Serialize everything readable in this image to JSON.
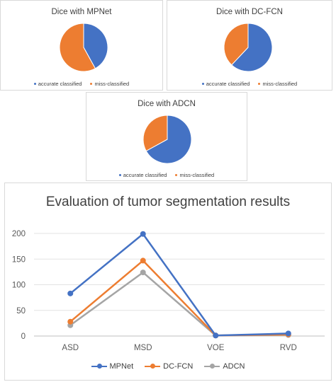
{
  "colors": {
    "blue": "#4472C4",
    "orange": "#ED7D31",
    "gray": "#A5A5A5"
  },
  "legend_labels": {
    "accurate": "accurate classified",
    "miss": "miss-classified"
  },
  "chart_data": [
    {
      "type": "pie",
      "title": "Dice with MPNet",
      "labels": [
        "accurate classified",
        "miss-classified"
      ],
      "values": [
        42,
        58
      ]
    },
    {
      "type": "pie",
      "title": "Dice with DC-FCN",
      "labels": [
        "accurate classified",
        "miss-classified"
      ],
      "values": [
        62,
        38
      ]
    },
    {
      "type": "pie",
      "title": "Dice with ADCN",
      "labels": [
        "accurate classified",
        "miss-classified"
      ],
      "values": [
        67,
        33
      ]
    },
    {
      "type": "line",
      "title": "Evaluation of tumor segmentation results",
      "categories": [
        "ASD",
        "MSD",
        "VOE",
        "RVD"
      ],
      "series": [
        {
          "name": "MPNet",
          "values": [
            83,
            199,
            1,
            5
          ]
        },
        {
          "name": "DC-FCN",
          "values": [
            28,
            147,
            1,
            3
          ]
        },
        {
          "name": "ADCN",
          "values": [
            21,
            124,
            1,
            2
          ]
        }
      ],
      "ylim": [
        0,
        200
      ],
      "yticks": [
        0,
        50,
        100,
        150,
        200
      ],
      "grid": true,
      "legend": "bottom"
    }
  ]
}
